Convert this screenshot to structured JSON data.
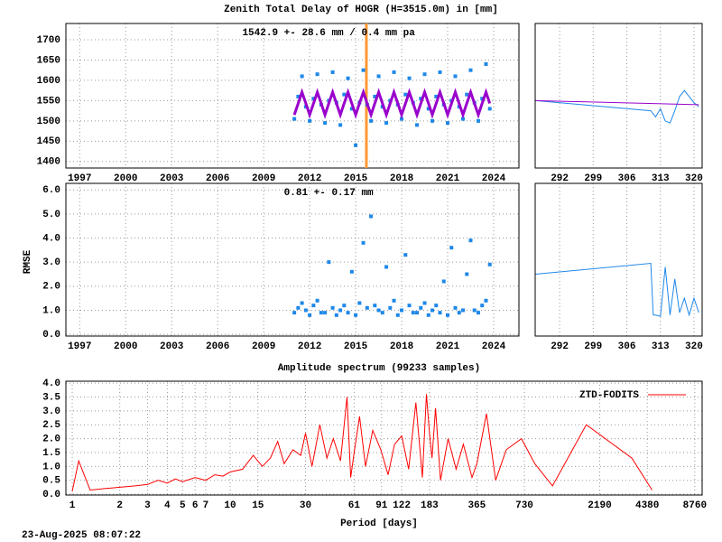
{
  "chart_data": [
    {
      "type": "scatter",
      "title": "Zenith Total Delay of HOGR (H=3515.0m) in [mm]",
      "annotation": "1542.9 +-  28.6 mm /  0.4 mm pa",
      "xlim": [
        1996.1,
        2025.65
      ],
      "xticks": [
        1997,
        2000,
        2003,
        2006,
        2009,
        2012,
        2015,
        2018,
        2021,
        2024
      ],
      "ylim": [
        1384,
        1740
      ],
      "yticks": [
        1400,
        1450,
        1500,
        1550,
        1600,
        1650,
        1700
      ],
      "grid": true,
      "vlines": [
        {
          "x": 2015.7,
          "color": "#ff9933"
        }
      ],
      "x": [
        2011,
        2011.25,
        2011.5,
        2011.75,
        2012,
        2012.25,
        2012.5,
        2012.75,
        2013,
        2013.25,
        2013.5,
        2013.75,
        2014,
        2014.25,
        2014.5,
        2014.75,
        2015,
        2015.25,
        2015.5,
        2015.75,
        2016,
        2016.25,
        2016.5,
        2016.75,
        2017,
        2017.25,
        2017.5,
        2017.75,
        2018,
        2018.25,
        2018.5,
        2018.75,
        2019,
        2019.25,
        2019.5,
        2019.75,
        2020,
        2020.25,
        2020.5,
        2020.75,
        2021,
        2021.25,
        2021.5,
        2021.75,
        2022,
        2022.25,
        2022.5,
        2022.75,
        2023,
        2023.25,
        2023.5,
        2023.75
      ],
      "series": [
        {
          "style": "points",
          "color": "#1e88e8",
          "values": [
            1505,
            1560,
            1610,
            1535,
            1500,
            1555,
            1615,
            1540,
            1495,
            1550,
            1620,
            1545,
            1490,
            1565,
            1605,
            1530,
            1440,
            1545,
            1625,
            1540,
            1500,
            1560,
            1610,
            1535,
            1495,
            1550,
            1620,
            1540,
            1505,
            1565,
            1605,
            1545,
            1490,
            1555,
            1615,
            1530,
            1500,
            1560,
            1620,
            1540,
            1495,
            1550,
            1610,
            1535,
            1505,
            1565,
            1625,
            1545,
            1500,
            1555,
            1640,
            1530
          ]
        },
        {
          "style": "line",
          "color": "#9900cc",
          "values": [
            1515,
            1543,
            1571,
            1543,
            1515,
            1543,
            1571,
            1543,
            1515,
            1543,
            1571,
            1543,
            1515,
            1543,
            1571,
            1543,
            1515,
            1543,
            1571,
            1543,
            1515,
            1543,
            1571,
            1543,
            1515,
            1543,
            1571,
            1543,
            1515,
            1543,
            1571,
            1543,
            1515,
            1543,
            1571,
            1543,
            1515,
            1543,
            1571,
            1543,
            1515,
            1543,
            1571,
            1543,
            1515,
            1543,
            1571,
            1543,
            1515,
            1543,
            1571,
            1543
          ]
        }
      ]
    },
    {
      "type": "line",
      "xlim": [
        286.9,
        321.7
      ],
      "xticks": [
        292,
        299,
        306,
        313,
        320
      ],
      "ylim": [
        1384,
        1740
      ],
      "grid": true,
      "series": [
        {
          "style": "line",
          "color": "#1e88e8",
          "x": [
            287,
            311,
            312,
            313,
            314,
            315,
            316,
            317,
            318,
            319,
            320,
            321
          ],
          "values": [
            1550,
            1525,
            1510,
            1530,
            1500,
            1495,
            1525,
            1560,
            1575,
            1560,
            1545,
            1535
          ]
        },
        {
          "style": "line",
          "color": "#9900cc",
          "x": [
            287,
            321
          ],
          "values": [
            1550,
            1540
          ]
        }
      ]
    },
    {
      "type": "scatter",
      "ylabel": "RMSE",
      "annotation": "0.81 +-  0.17 mm",
      "xlim": [
        1996.1,
        2025.65
      ],
      "xticks": [
        1997,
        2000,
        2003,
        2006,
        2009,
        2012,
        2015,
        2018,
        2021,
        2024
      ],
      "ylim": [
        -0.07,
        6.27
      ],
      "yticks": [
        {
          "value": 0,
          "label": "0.0"
        },
        {
          "value": 1,
          "label": "1.0"
        },
        {
          "value": 2,
          "label": "2.0"
        },
        {
          "value": 3,
          "label": "3.0"
        },
        {
          "value": 4,
          "label": "4.0"
        },
        {
          "value": 5,
          "label": "5.0"
        },
        {
          "value": 6,
          "label": "6.0"
        }
      ],
      "grid": true,
      "x": [
        2011,
        2011.25,
        2011.5,
        2011.75,
        2012,
        2012.25,
        2012.5,
        2012.75,
        2013,
        2013.25,
        2013.5,
        2013.75,
        2014,
        2014.25,
        2014.5,
        2014.75,
        2015,
        2015.25,
        2015.5,
        2015.75,
        2016,
        2016.25,
        2016.5,
        2016.75,
        2017,
        2017.25,
        2017.5,
        2017.75,
        2018,
        2018.25,
        2018.5,
        2018.75,
        2019,
        2019.25,
        2019.5,
        2019.75,
        2020,
        2020.25,
        2020.5,
        2020.75,
        2021,
        2021.25,
        2021.5,
        2021.75,
        2022,
        2022.25,
        2022.5,
        2022.75,
        2023,
        2023.25,
        2023.5,
        2023.75
      ],
      "series": [
        {
          "style": "points",
          "color": "#1e88e8",
          "values": [
            0.9,
            1.1,
            1.3,
            1.0,
            0.8,
            1.2,
            1.4,
            0.9,
            0.9,
            3.0,
            1.1,
            0.8,
            1.0,
            1.2,
            0.9,
            2.6,
            0.8,
            1.3,
            3.8,
            1.1,
            4.9,
            1.2,
            1.0,
            0.9,
            2.8,
            1.1,
            1.4,
            0.8,
            1.0,
            3.3,
            1.2,
            0.9,
            0.9,
            1.1,
            1.3,
            0.8,
            1.0,
            1.2,
            0.9,
            2.2,
            0.8,
            3.6,
            1.1,
            0.9,
            1.0,
            2.5,
            3.9,
            1.0,
            0.9,
            1.2,
            1.4,
            2.9
          ]
        }
      ]
    },
    {
      "type": "line",
      "xlim": [
        286.9,
        321.7
      ],
      "xticks": [
        292,
        299,
        306,
        313,
        320
      ],
      "ylim": [
        -0.07,
        6.27
      ],
      "grid": true,
      "series": [
        {
          "style": "line",
          "color": "#1e88e8",
          "x": [
            287,
            311,
            311.5,
            312,
            313,
            314,
            315,
            316,
            317,
            318,
            319,
            320,
            321
          ],
          "values": [
            2.5,
            2.95,
            0.8,
            0.8,
            0.75,
            2.8,
            0.8,
            2.3,
            0.9,
            1.5,
            0.8,
            1.5,
            0.9
          ]
        }
      ]
    },
    {
      "type": "line",
      "title": "Amplitude spectrum (99233 samples)",
      "xlabel": "Period [days]",
      "log_x": true,
      "xlim": [
        0.912,
        9750
      ],
      "xticks": [
        1,
        2,
        3,
        4,
        5,
        6,
        7,
        10,
        15,
        30,
        61,
        91,
        122,
        183,
        365,
        730,
        2190,
        4380,
        8760
      ],
      "ylim": [
        -0.03,
        4.07
      ],
      "yticks": [
        {
          "value": 0,
          "label": "0.0"
        },
        {
          "value": 0.5,
          "label": "0.5"
        },
        {
          "value": 1,
          "label": "1.0"
        },
        {
          "value": 1.5,
          "label": "1.5"
        },
        {
          "value": 2,
          "label": "2.0"
        },
        {
          "value": 2.5,
          "label": "2.5"
        },
        {
          "value": 3,
          "label": "3.0"
        },
        {
          "value": 3.5,
          "label": "3.5"
        },
        {
          "value": 4,
          "label": "4.0"
        }
      ],
      "grid": true,
      "legend": "upper right",
      "series": [
        {
          "name": "ZTD-FODITS",
          "style": "line",
          "color": "#ff0000",
          "x": [
            1,
            1.1,
            1.3,
            1.6,
            2,
            2.5,
            3,
            3.5,
            4,
            4.5,
            5,
            6,
            7,
            8,
            9,
            10,
            12,
            14,
            16,
            18,
            20,
            22,
            25,
            28,
            30,
            33,
            37,
            41,
            45,
            50,
            55,
            58,
            61,
            66,
            72,
            80,
            90,
            100,
            110,
            122,
            135,
            150,
            165,
            175,
            183,
            190,
            200,
            215,
            240,
            270,
            300,
            340,
            365,
            420,
            480,
            560,
            700,
            850,
            1100,
            1800,
            3500,
            4700
          ],
          "values": [
            0.1,
            1.2,
            0.15,
            0.2,
            0.25,
            0.3,
            0.35,
            0.5,
            0.4,
            0.55,
            0.45,
            0.6,
            0.5,
            0.7,
            0.65,
            0.8,
            0.9,
            1.4,
            1.0,
            1.3,
            1.9,
            1.1,
            1.6,
            1.4,
            2.2,
            1.0,
            2.5,
            1.3,
            2.0,
            1.2,
            3.5,
            0.6,
            1.5,
            2.8,
            1.0,
            2.3,
            1.6,
            0.7,
            1.8,
            2.1,
            0.9,
            3.3,
            0.6,
            3.6,
            2.2,
            1.3,
            3.1,
            0.5,
            2.0,
            0.9,
            1.8,
            0.6,
            1.1,
            2.9,
            0.5,
            1.6,
            2.0,
            1.1,
            0.3,
            2.5,
            1.3,
            0.15
          ]
        }
      ]
    }
  ],
  "timestamp": "23-Aug-2025 08:07:22"
}
